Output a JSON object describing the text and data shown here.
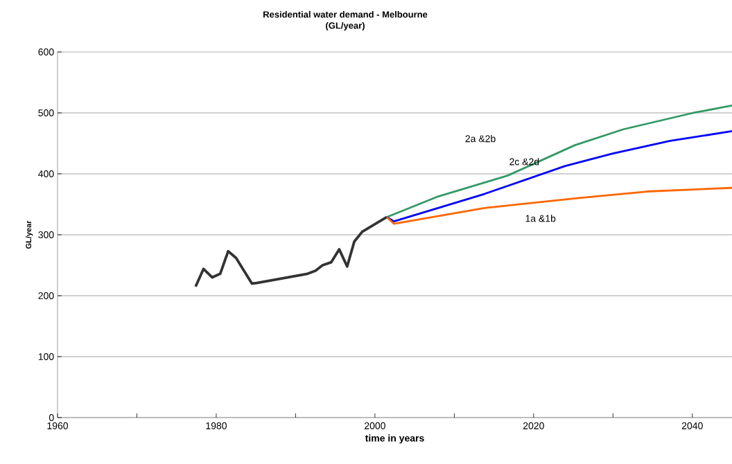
{
  "chart_data": {
    "type": "line",
    "title": "Residential water demand - Melbourne",
    "subtitle": "(GL/year)",
    "xlabel": "time in years",
    "ylabel": "GL/year",
    "xlim": [
      1960,
      2045
    ],
    "ylim": [
      0,
      600
    ],
    "xticks": [
      1960,
      {
        "value": 1970,
        "label": null
      },
      1980,
      {
        "value": 1990,
        "label": null
      },
      2000,
      {
        "value": 2010,
        "label": null
      },
      2020,
      {
        "value": 2030,
        "label": null
      },
      2040
    ],
    "yticks": [
      0,
      100,
      200,
      300,
      400,
      500,
      600
    ],
    "grid": "y",
    "series": [
      {
        "color": "#333333",
        "x": [
          1977.4,
          1978.4,
          1979.5,
          1980.5,
          1981.5,
          1982.5,
          1984.5,
          1985.1,
          1991.5,
          1992.5,
          1993.4,
          1994.5,
          1995.5,
          1996.5,
          1997.4,
          1998.4,
          2001.5
        ],
        "values": [
          215,
          244,
          230,
          236,
          273,
          262,
          220,
          221,
          236,
          241,
          250,
          255,
          276,
          248,
          289,
          305,
          329
        ]
      },
      {
        "color": "#339966",
        "x": [
          2001.5,
          2008,
          2016.7,
          2025.2,
          2031.3,
          2040.1,
          2045
        ],
        "values": [
          329,
          363,
          397,
          447,
          473,
          500,
          512
        ]
      },
      {
        "color": "#0000ff",
        "x": [
          2001.5,
          2002.4,
          2013.8,
          2024,
          2029.9,
          2037.2,
          2045
        ],
        "values": [
          329,
          322,
          367,
          413,
          433,
          454,
          470
        ]
      },
      {
        "color": "#ff6600",
        "x": [
          2001.5,
          2002.4,
          2013.8,
          2025.5,
          2034.3,
          2045
        ],
        "values": [
          329,
          318,
          344,
          360,
          371,
          377
        ]
      }
    ],
    "annotations": [
      "2a &2b",
      "2c &2d",
      "1a &1b"
    ]
  }
}
